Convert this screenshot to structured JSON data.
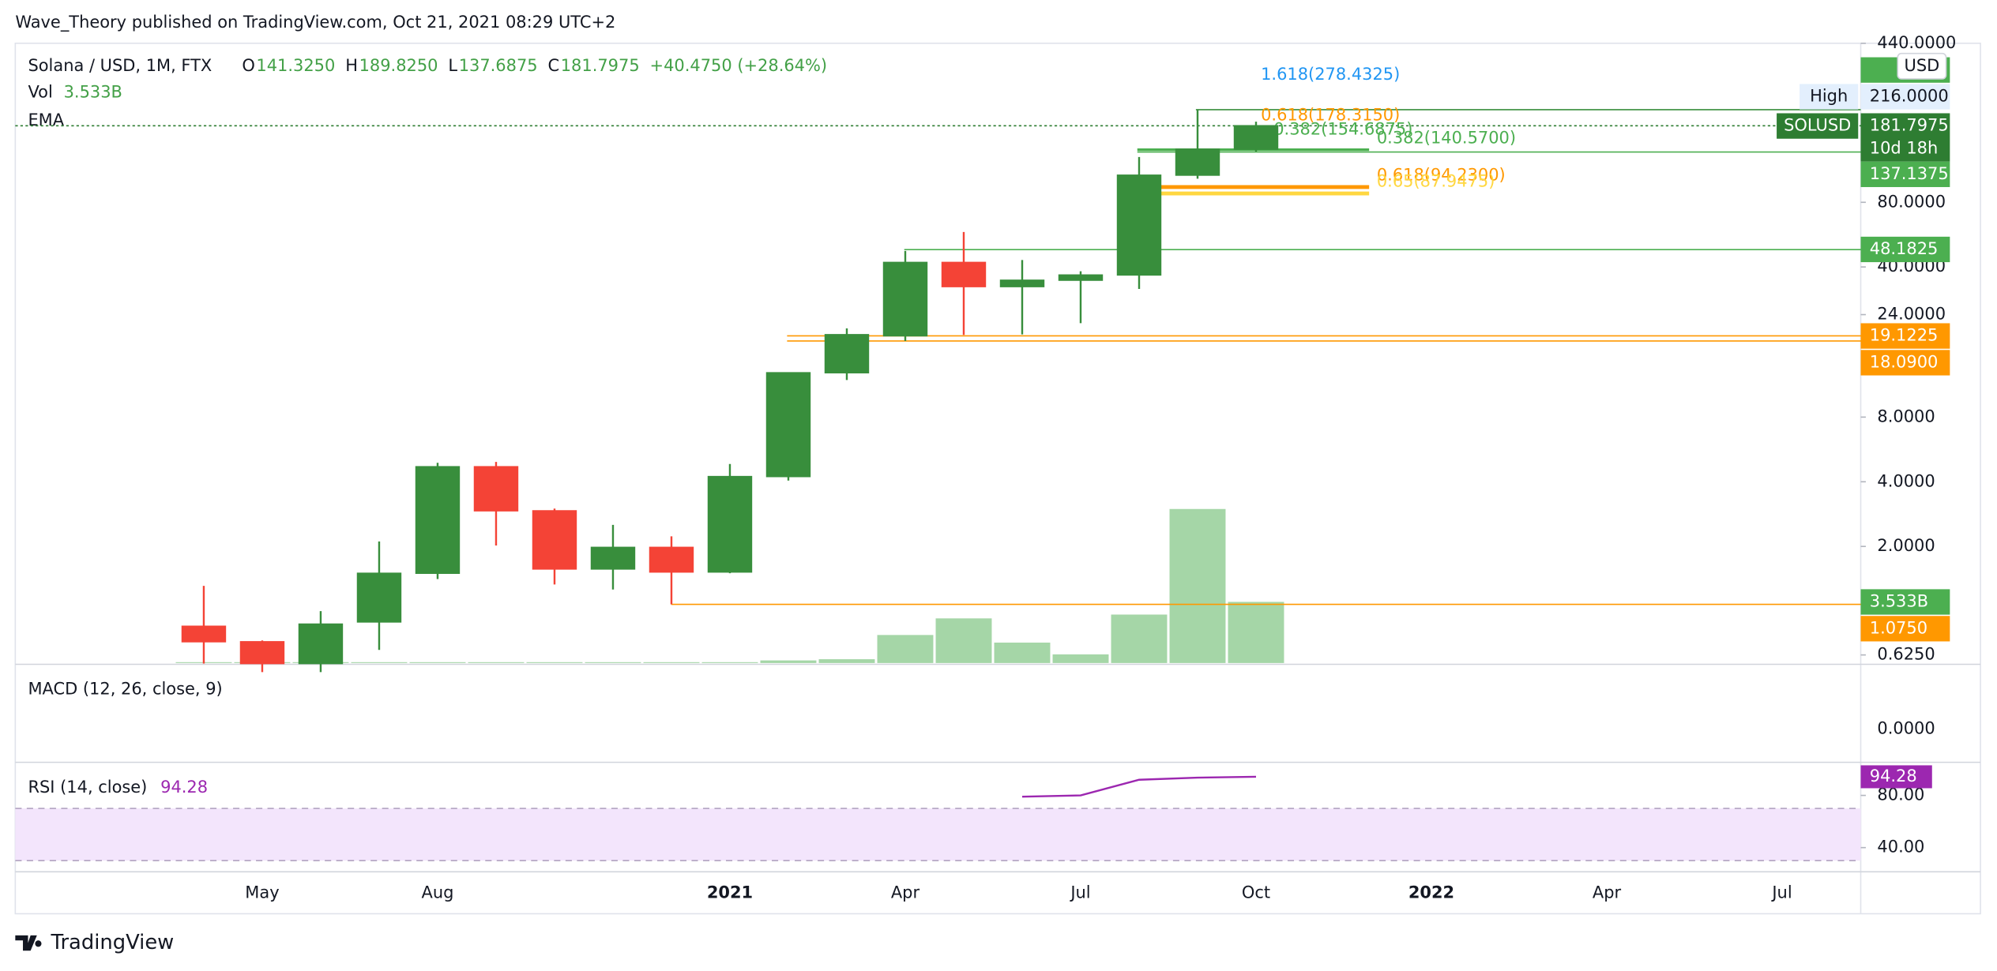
{
  "header": {
    "publisher": "Wave_Theory published on TradingView.com, Oct 21, 2021 08:29 UTC+2",
    "brand": "TradingView"
  },
  "chart_data": {
    "type": "candlestick",
    "symbol": "Solana / USD, 1M, FTX",
    "ohlc": [
      {
        "key": "O",
        "value": 141.325,
        "label": "141.3250"
      },
      {
        "key": "H",
        "value": 189.825,
        "label": "189.8250"
      },
      {
        "key": "L",
        "value": 137.6875,
        "label": "137.6875"
      },
      {
        "key": "C",
        "value": 181.7975,
        "label": "181.7975"
      }
    ],
    "change": "+40.4750 (+28.64%)",
    "volume_name": "Vol",
    "volume_label": "3.533B",
    "ema_name": "EMA",
    "currency": "USD",
    "categories": [
      null,
      "May",
      null,
      null,
      "Aug",
      null,
      null,
      null,
      null,
      "2021",
      null,
      null,
      "Apr",
      null,
      null,
      "Jul",
      null,
      null,
      "Oct",
      null,
      null,
      "2022",
      null,
      null,
      "Apr",
      null,
      null,
      "Jul",
      null
    ],
    "open": [
      0.85,
      0.72,
      0.57,
      0.89,
      1.5,
      4.7,
      2.93,
      1.57,
      1.98,
      1.52,
      4.23,
      12.87,
      19.12,
      42,
      32.4,
      34.7,
      36.7,
      107,
      141.325,
      null,
      null,
      null,
      null,
      null,
      null,
      null,
      null,
      null,
      null
    ],
    "high": [
      1.31,
      0.73,
      1.0,
      2.11,
      4.9,
      4.95,
      3.0,
      2.52,
      2.23,
      4.84,
      12.9,
      20.7,
      47.5,
      58.2,
      43.1,
      38.2,
      130,
      216,
      189.825,
      null,
      null,
      null,
      null,
      null,
      null,
      null,
      null,
      null,
      null
    ],
    "low": [
      0.57,
      0.52,
      0.52,
      0.66,
      1.41,
      2.02,
      1.33,
      1.26,
      1.075,
      1.5,
      4.05,
      11.9,
      18.09,
      19.3,
      19.4,
      21.9,
      31.6,
      103,
      137.6875,
      null,
      null,
      null,
      null,
      null,
      null,
      null,
      null,
      null,
      null
    ],
    "close": [
      0.72,
      0.57,
      0.87,
      1.5,
      4.7,
      2.93,
      1.57,
      1.98,
      1.52,
      4.23,
      12.87,
      19.36,
      42,
      32.4,
      34.7,
      36.7,
      107,
      141.325,
      181.7975,
      null,
      null,
      null,
      null,
      null,
      null,
      null,
      null,
      null,
      null
    ],
    "volume": [
      0.05,
      0.05,
      0.05,
      0.05,
      0.05,
      0.05,
      0.05,
      0.05,
      0.05,
      0.05,
      0.15,
      0.22,
      1.62,
      2.58,
      1.18,
      0.5,
      2.8,
      8.9,
      3.533,
      null,
      null,
      null,
      null,
      null,
      null,
      null,
      null,
      null,
      null
    ],
    "volume_ylim": [
      0,
      35
    ],
    "up_color": "#388e3c",
    "down_color": "#f44336",
    "volume_color": "#a5d6a7",
    "log_scale": true,
    "ylim": [
      0.5,
      440
    ],
    "yticks": [
      {
        "value": 440,
        "label": "440.0000"
      },
      {
        "value": 80,
        "label": "80.0000"
      },
      {
        "value": 40,
        "label": "40.0000"
      },
      {
        "value": 24,
        "label": "24.0000"
      },
      {
        "value": 8,
        "label": "8.0000"
      },
      {
        "value": 4,
        "label": "4.0000"
      },
      {
        "value": 2,
        "label": "2.0000"
      },
      {
        "value": 0.625,
        "label": "0.6250"
      }
    ],
    "levels": [
      {
        "value": 216,
        "label": "216.0000",
        "tag": "High",
        "color": "#388e3c"
      },
      {
        "value": 181.7975,
        "label": "181.7975",
        "tag": "SOLUSD",
        "sub": "10d 18h",
        "color": "#2e7d32"
      },
      {
        "value": 137.1375,
        "label": "137.1375",
        "color": "#4caf50"
      },
      {
        "value": 48.1825,
        "label": "48.1825",
        "color": "#4caf50"
      },
      {
        "value": 19.1225,
        "label": "19.1225",
        "color": "#ff9800"
      },
      {
        "value": 18.09,
        "label": "18.0900",
        "color": "#ff9800"
      },
      {
        "value": 1.075,
        "label": "1.0750",
        "color": "#ff9800"
      }
    ],
    "fibs": [
      {
        "value": 278.4325,
        "label": "1.618(278.4325)",
        "color": "#2196f3"
      },
      {
        "value": 178.315,
        "label": "0.618(178.3150)",
        "color": "#ff9800"
      },
      {
        "value": 154.6875,
        "label": "0.382(154.6875)",
        "color": "#4caf50"
      },
      {
        "value": 140.57,
        "label": "0.382(140.5700)",
        "color": "#4caf50"
      },
      {
        "value": 94.23,
        "label": "0.618(94.2300)",
        "color": "#ff9800"
      },
      {
        "value": 87.9475,
        "label": "0.65(87.9475)",
        "color": "#ffd740"
      }
    ],
    "macd": {
      "name": "MACD (12, 26, close, 9)",
      "yticks": [
        {
          "value": 0,
          "label": "0.0000"
        }
      ]
    },
    "rsi": {
      "name": "RSI (14, close)",
      "value_label": "94.28",
      "color": "#9c27b0",
      "values": [
        null,
        null,
        null,
        null,
        null,
        null,
        null,
        null,
        null,
        null,
        null,
        null,
        null,
        null,
        79,
        80,
        92,
        93.6,
        94.28,
        null,
        null,
        null,
        null,
        null,
        null,
        null,
        null,
        null,
        null
      ],
      "ylim": [
        21.5,
        104.4
      ],
      "band": [
        30,
        70
      ],
      "yticks": [
        {
          "value": 80,
          "label": "80.00"
        },
        {
          "value": 40,
          "label": "40.00"
        }
      ]
    }
  }
}
